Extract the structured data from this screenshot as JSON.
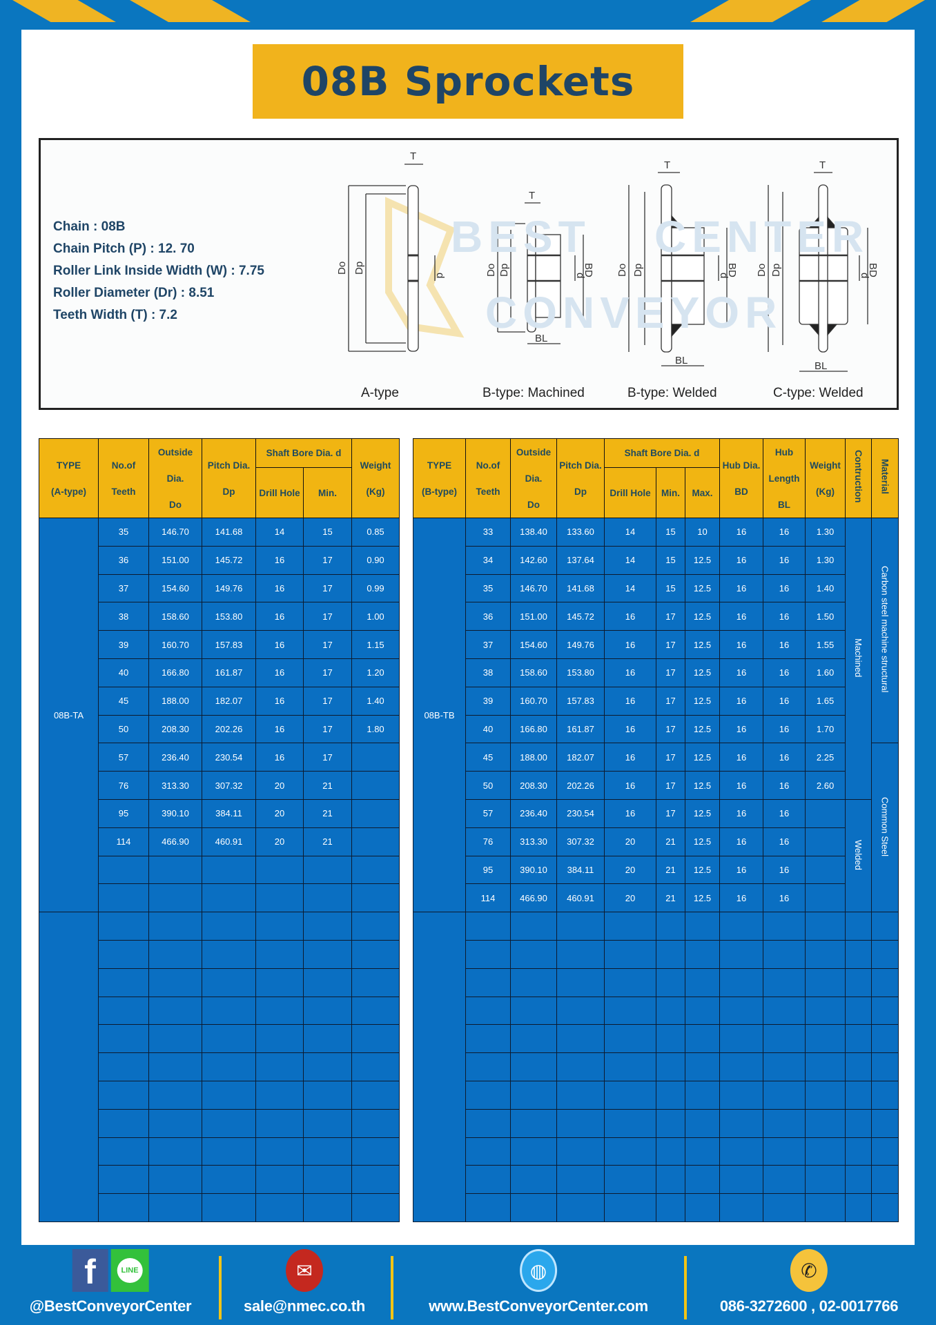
{
  "title": "08B Sprockets",
  "colors": {
    "frame": "#0a76bf",
    "accent_yellow": "#f1b31c",
    "table_body": "#0a6fc2",
    "title_text": "#1f4566"
  },
  "specs": {
    "chain": "Chain  : 08B",
    "pitch": "Chain Pitch (P)  :  12. 70",
    "inside_width": "Roller Link Inside Width (W)  :  7.75",
    "roller_diameter": "Roller Diameter (Dr)  : 8.51",
    "teeth_width": "Teeth Width (T)  :  7.2"
  },
  "diagram": {
    "labels": {
      "a": "A-type",
      "bm": "B-type: Machined",
      "bw": "B-type: Welded",
      "cw": "C-type: Welded"
    },
    "dims": {
      "T": "T",
      "Do": "Do",
      "Dp": "Dp",
      "d": "d",
      "BD": "BD",
      "BL": "BL"
    },
    "watermark": [
      "BEST",
      "CONVEYOR",
      "CENTER"
    ]
  },
  "tableA": {
    "headers": {
      "type": "TYPE",
      "type_sub": "(A-type)",
      "teeth": "No.of",
      "teeth_sub": "Teeth",
      "do": "Outside",
      "do_2": "Dia.",
      "do_3": "Do",
      "dp": "Pitch Dia.",
      "dp_sub": "Dp",
      "bore": "Shaft Bore Dia. d",
      "drill": "Drill Hole",
      "min": "Min.",
      "weight": "Weight",
      "weight_sub": "(Kg)"
    },
    "type_value": "08B-TA",
    "rows": [
      [
        "35",
        "146.70",
        "141.68",
        "14",
        "15",
        "0.85"
      ],
      [
        "36",
        "151.00",
        "145.72",
        "16",
        "17",
        "0.90"
      ],
      [
        "37",
        "154.60",
        "149.76",
        "16",
        "17",
        "0.99"
      ],
      [
        "38",
        "158.60",
        "153.80",
        "16",
        "17",
        "1.00"
      ],
      [
        "39",
        "160.70",
        "157.83",
        "16",
        "17",
        "1.15"
      ],
      [
        "40",
        "166.80",
        "161.87",
        "16",
        "17",
        "1.20"
      ],
      [
        "45",
        "188.00",
        "182.07",
        "16",
        "17",
        "1.40"
      ],
      [
        "50",
        "208.30",
        "202.26",
        "16",
        "17",
        "1.80"
      ],
      [
        "57",
        "236.40",
        "230.54",
        "16",
        "17",
        ""
      ],
      [
        "76",
        "313.30",
        "307.32",
        "20",
        "21",
        ""
      ],
      [
        "95",
        "390.10",
        "384.11",
        "20",
        "21",
        ""
      ],
      [
        "114",
        "466.90",
        "460.91",
        "20",
        "21",
        ""
      ],
      [
        "",
        "",
        "",
        "",
        "",
        ""
      ],
      [
        "",
        "",
        "",
        "",
        "",
        ""
      ]
    ]
  },
  "tableB": {
    "headers": {
      "type": "TYPE",
      "type_sub": "(B-type)",
      "teeth": "No.of",
      "teeth_sub": "Teeth",
      "do": "Outside",
      "do_2": "Dia.",
      "do_3": "Do",
      "dp": "Pitch Dia.",
      "dp_sub": "Dp",
      "bore": "Shaft Bore Dia. d",
      "drill": "Drill Hole",
      "min": "Min.",
      "max": "Max.",
      "bd": "Hub Dia.",
      "bd_sub": "BD",
      "bl": "Hub",
      "bl_2": "Length",
      "bl_3": "BL",
      "weight": "Weight",
      "weight_sub": "(Kg)",
      "construction": "Contruction",
      "material": "Material"
    },
    "type_value": "08B-TB",
    "construction": [
      "Machined",
      "Welded"
    ],
    "material": [
      "Carbon steel  machine structural",
      "Common  Steel"
    ],
    "rows": [
      [
        "33",
        "138.40",
        "133.60",
        "14",
        "15",
        "10",
        "16",
        "16",
        "1.30"
      ],
      [
        "34",
        "142.60",
        "137.64",
        "14",
        "15",
        "12.5",
        "16",
        "16",
        "1.30"
      ],
      [
        "35",
        "146.70",
        "141.68",
        "14",
        "15",
        "12.5",
        "16",
        "16",
        "1.40"
      ],
      [
        "36",
        "151.00",
        "145.72",
        "16",
        "17",
        "12.5",
        "16",
        "16",
        "1.50"
      ],
      [
        "37",
        "154.60",
        "149.76",
        "16",
        "17",
        "12.5",
        "16",
        "16",
        "1.55"
      ],
      [
        "38",
        "158.60",
        "153.80",
        "16",
        "17",
        "12.5",
        "16",
        "16",
        "1.60"
      ],
      [
        "39",
        "160.70",
        "157.83",
        "16",
        "17",
        "12.5",
        "16",
        "16",
        "1.65"
      ],
      [
        "40",
        "166.80",
        "161.87",
        "16",
        "17",
        "12.5",
        "16",
        "16",
        "1.70"
      ],
      [
        "45",
        "188.00",
        "182.07",
        "16",
        "17",
        "12.5",
        "16",
        "16",
        "2.25"
      ],
      [
        "50",
        "208.30",
        "202.26",
        "16",
        "17",
        "12.5",
        "16",
        "16",
        "2.60"
      ],
      [
        "57",
        "236.40",
        "230.54",
        "16",
        "17",
        "12.5",
        "16",
        "16",
        ""
      ],
      [
        "76",
        "313.30",
        "307.32",
        "20",
        "21",
        "12.5",
        "16",
        "16",
        ""
      ],
      [
        "95",
        "390.10",
        "384.11",
        "20",
        "21",
        "12.5",
        "16",
        "16",
        ""
      ],
      [
        "114",
        "466.90",
        "460.91",
        "20",
        "21",
        "12.5",
        "16",
        "16",
        ""
      ]
    ]
  },
  "footer": {
    "social": "@BestConveyorCenter",
    "facebook_icon_text": "f",
    "line_icon_text": "LINE",
    "email": "sale@nmec.co.th",
    "website": "www.BestConveyorCenter.com",
    "phone": "086-3272600 , 02-0017766",
    "icons": [
      "facebook-icon",
      "line-icon",
      "email-icon",
      "globe-icon",
      "phone-icon"
    ]
  }
}
